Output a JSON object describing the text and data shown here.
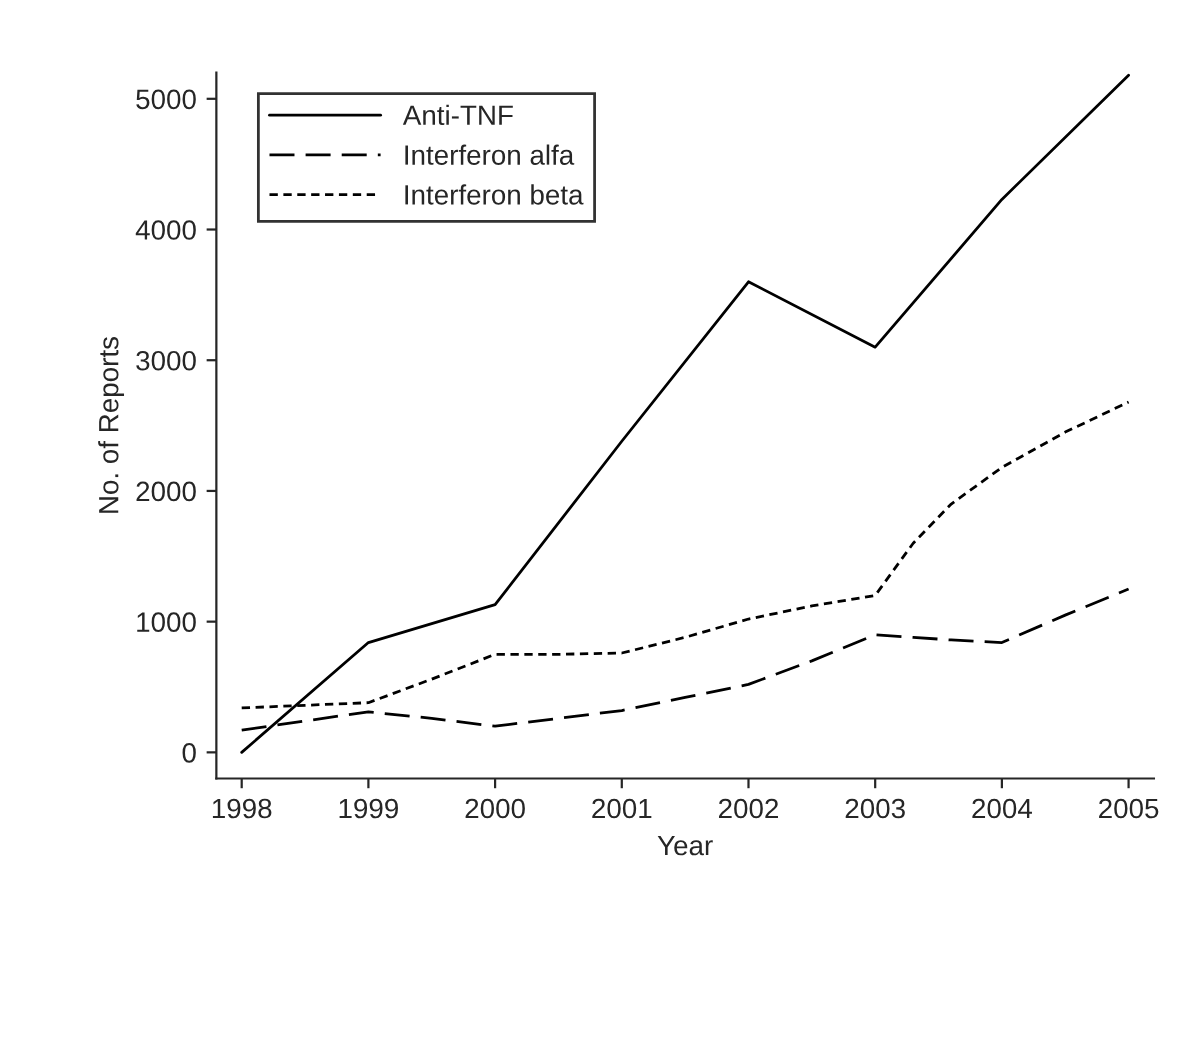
{
  "chart_data": {
    "type": "line",
    "xlabel": "Year",
    "ylabel": "No. of Reports",
    "xlim": [
      1997.8,
      2005.2
    ],
    "xticks": [
      1998,
      1999,
      2000,
      2001,
      2002,
      2003,
      2004,
      2005
    ],
    "ylim": [
      -200,
      5200
    ],
    "yticks": [
      0,
      1000,
      2000,
      3000,
      4000,
      5000
    ],
    "legend": "top left",
    "grid": false,
    "marker": "none",
    "series": [
      {
        "name": "Anti-TNF",
        "color": "#000000",
        "line_style": "solid",
        "x": [
          1998,
          1999,
          2000,
          2001,
          2002,
          2003,
          2004,
          2005
        ],
        "values": [
          0,
          840,
          1130,
          2380,
          3600,
          3100,
          4230,
          5180
        ]
      },
      {
        "name": "Interferon alfa",
        "color": "#000000",
        "line_style": "longdash",
        "x": [
          1998,
          1998.5,
          1999,
          1999.5,
          2000,
          2000.5,
          2001,
          2001.5,
          2002,
          2002.5,
          2003,
          2003.3,
          2003.6,
          2004,
          2004.5,
          2005
        ],
        "values": [
          170,
          240,
          310,
          260,
          200,
          260,
          320,
          420,
          520,
          700,
          900,
          880,
          860,
          840,
          1050,
          1250
        ]
      },
      {
        "name": "Interferon beta",
        "color": "#000000",
        "line_style": "dashed",
        "x": [
          1998,
          1998.5,
          1999,
          1999.5,
          2000,
          2000.5,
          2001,
          2001.5,
          2002,
          2002.5,
          2003,
          2003.3,
          2003.6,
          2004,
          2004.5,
          2005
        ],
        "values": [
          340,
          360,
          380,
          560,
          750,
          750,
          760,
          880,
          1020,
          1120,
          1200,
          1600,
          1900,
          2180,
          2450,
          2680
        ]
      }
    ]
  }
}
